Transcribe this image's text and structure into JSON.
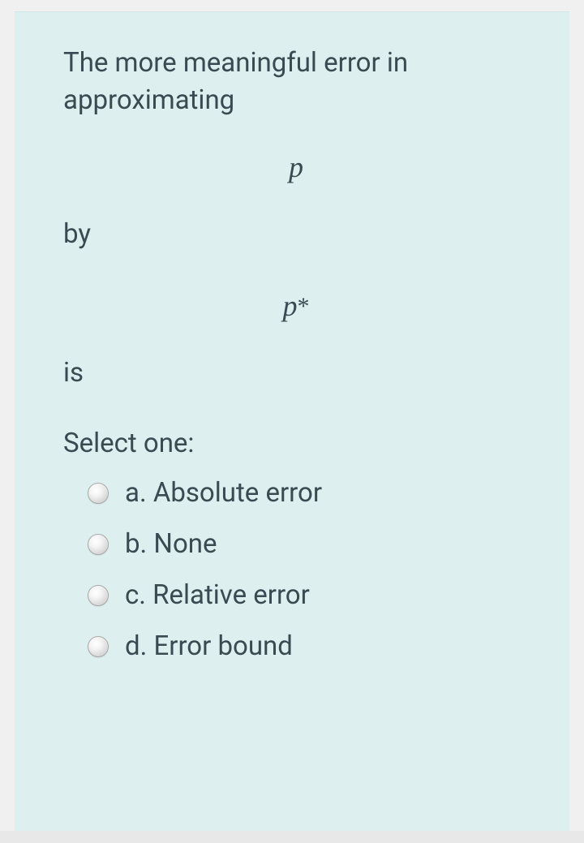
{
  "colors": {
    "page_bg": "#e8e8e8",
    "card_bg": "#ddf0ef",
    "text": "#3a4a52"
  },
  "question": {
    "line1": "The more meaningful error in approximating",
    "math1": "p",
    "line2": "by",
    "math2_base": "p",
    "math2_star": "*",
    "line3": "is",
    "select_heading": "Select one:"
  },
  "options": [
    {
      "letter": "a.",
      "text": "Absolute error",
      "selected": false
    },
    {
      "letter": "b.",
      "text": "None",
      "selected": false
    },
    {
      "letter": "c.",
      "text": "Relative error",
      "selected": false
    },
    {
      "letter": "d.",
      "text": "Error bound",
      "selected": false
    }
  ]
}
